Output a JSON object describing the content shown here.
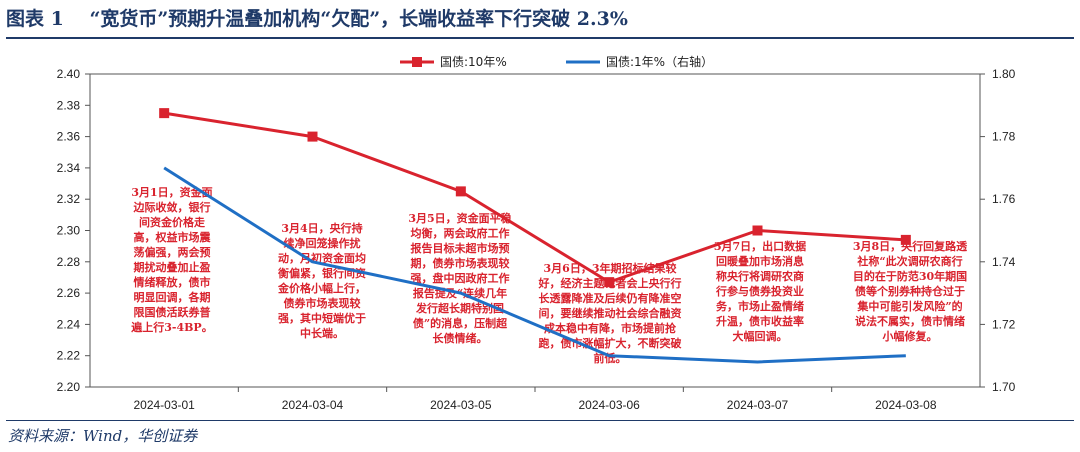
{
  "title": "图表 1　 “宽货币”预期升温叠加机构“欠配”，长端收益率下行突破 2.3%",
  "source": "资料来源：Wind，华创证券",
  "colors": {
    "series_10y": "#d9232e",
    "series_1y": "#1f6fc5",
    "title": "#1f3a68",
    "annotation": "#d9232e"
  },
  "chart_data": {
    "type": "line",
    "categories": [
      "2024-03-01",
      "2024-03-04",
      "2024-03-05",
      "2024-03-06",
      "2024-03-07",
      "2024-03-08"
    ],
    "series": [
      {
        "name": "国债:10年%",
        "axis": "left",
        "marker": "square",
        "values": [
          2.375,
          2.36,
          2.325,
          2.267,
          2.3,
          2.294
        ]
      },
      {
        "name": "国债:1年%（右轴）",
        "axis": "right",
        "marker": "none",
        "values": [
          1.77,
          1.74,
          1.73,
          1.71,
          1.708,
          1.71
        ]
      }
    ],
    "y_left": {
      "min": 2.2,
      "max": 2.4,
      "ticks": [
        "2.20",
        "2.22",
        "2.24",
        "2.26",
        "2.28",
        "2.30",
        "2.32",
        "2.34",
        "2.36",
        "2.38",
        "2.40"
      ]
    },
    "y_right": {
      "min": 1.7,
      "max": 1.8,
      "ticks": [
        "1.70",
        "1.72",
        "1.74",
        "1.76",
        "1.78",
        "1.80"
      ]
    },
    "grid": false,
    "legend": "top-center",
    "annotations": [
      {
        "category": "2024-03-01",
        "lines": [
          "3月1日，资金面",
          "边际收敛，银行",
          "间资金价格走",
          "高，权益市场震",
          "荡偏强，两会预",
          "期扰动叠加止盈",
          "情绪释放，债市",
          "明显回调，各期",
          "限国债活跃券普",
          "遍上行3-4BP。"
        ]
      },
      {
        "category": "2024-03-04",
        "lines": [
          "3月4日，央行持",
          "续净回笼操作扰",
          "动，月初资金面均",
          "衡偏紧，银行间资",
          "金价格小幅上行，",
          "债券市场表现较",
          "强，其中短端优于",
          "中长端。"
        ]
      },
      {
        "category": "2024-03-05",
        "lines": [
          "3月5日，资金面平稳",
          "均衡，两会政府工作",
          "报告目标未超市场预",
          "期，债券市场表现较",
          "强，盘中因政府工作",
          "报告提及“连续几年",
          "发行超长期特别国",
          "债”的消息，压制超",
          "长债情绪。"
        ]
      },
      {
        "category": "2024-03-06",
        "lines": [
          "3月6日，3年期招标结果较",
          "好，经济主题记者会上央行行",
          "长透露降准及后续仍有降准空",
          "间，要继续推动社会综合融资",
          "成本稳中有降，市场提前抢",
          "跑，债市涨幅扩大，不断突破",
          "前低。"
        ]
      },
      {
        "category": "2024-03-07",
        "lines": [
          "3月7日，出口数据",
          "回暖叠加市场消息",
          "称央行将调研农商",
          "行参与债券投资业",
          "务，市场止盈情绪",
          "升温，债市收益率",
          "大幅回调。"
        ]
      },
      {
        "category": "2024-03-08",
        "lines": [
          "3月8日，央行回复路透",
          "社称“此次调研农商行",
          "目的在于防范30年期国",
          "债等个别券种持仓过于",
          "集中可能引发风险”的",
          "说法不属实，债市情绪",
          "小幅修复。"
        ]
      }
    ]
  }
}
